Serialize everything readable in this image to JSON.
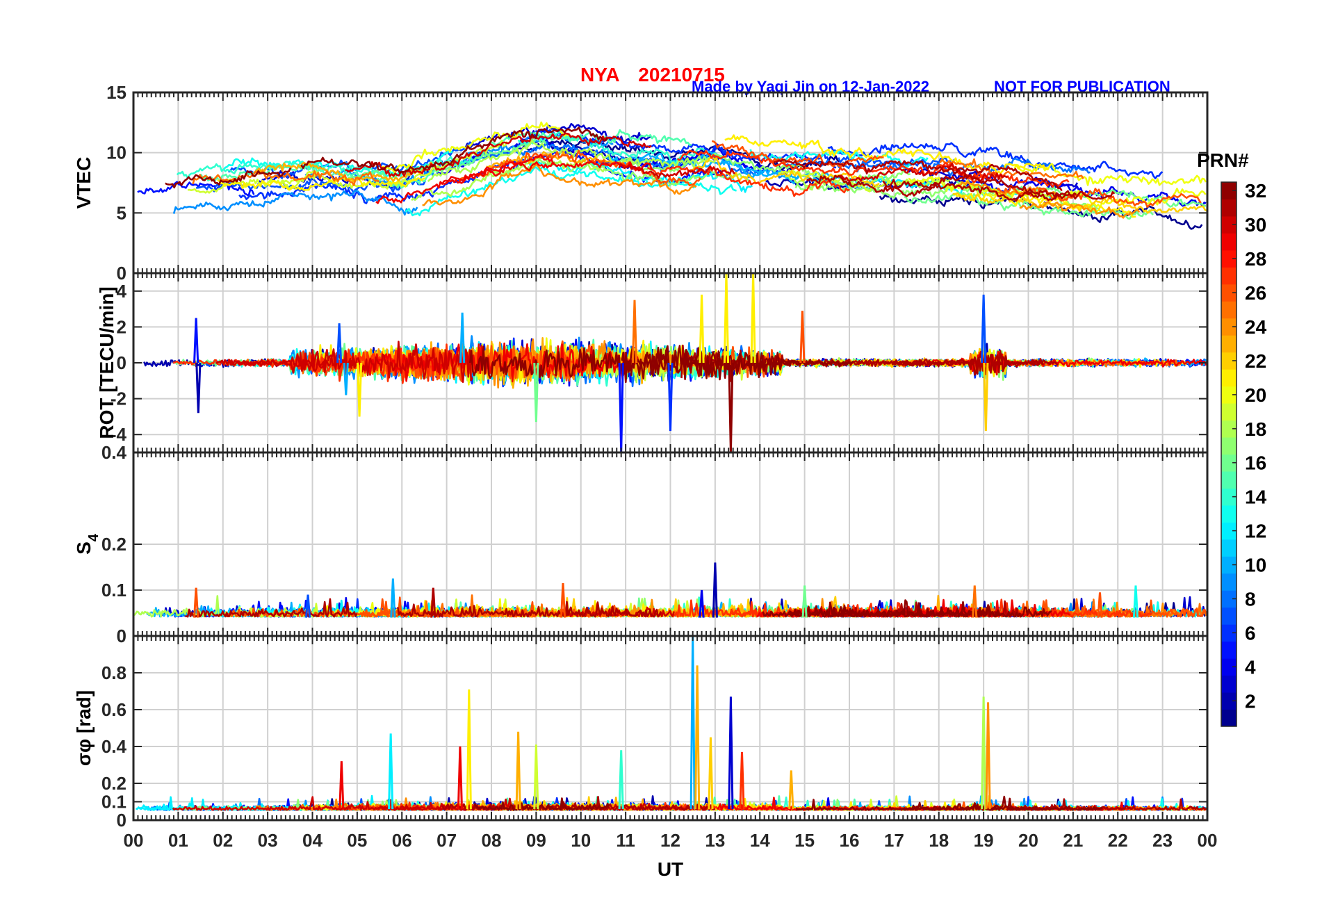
{
  "title": {
    "station": "NYA",
    "date": "20210715",
    "author_note": "Made by Yaqi Jin on 12-Jan-2022",
    "disclaimer": "NOT FOR PUBLICATION",
    "station_color": "#ff0000",
    "note_color": "#0000ff"
  },
  "chart_data": [
    {
      "type": "line",
      "panel": "vtec",
      "ylabel": "VTEC",
      "ylim": [
        0,
        15
      ],
      "yticks": [
        "0",
        "5",
        "10",
        "15"
      ],
      "yticks_values": [
        0,
        5,
        10,
        15
      ],
      "series_note": "one line per PRN 1-32, colored by PRN",
      "typical_range": [
        5,
        12.5
      ],
      "approx_profile_ut_hours": [
        0,
        2,
        4,
        6,
        8,
        9,
        10,
        12,
        13,
        14,
        16,
        18,
        20,
        22,
        24
      ],
      "approx_profile_values": [
        6.5,
        7.0,
        7.5,
        7.0,
        9.5,
        10.5,
        10.0,
        9.0,
        9.5,
        8.5,
        8.0,
        8.0,
        7.0,
        6.5,
        6.0
      ]
    },
    {
      "type": "line",
      "panel": "rot",
      "ylabel": "ROT [TECU/min]",
      "ylim": [
        -5,
        5
      ],
      "yticks": [
        "-4",
        "-2",
        "0",
        "2",
        "4"
      ],
      "yticks_values": [
        -4,
        -2,
        0,
        2,
        4
      ],
      "series_note": "rate of TEC, enhanced activity 04-14 UT and near 19 UT",
      "spikes": [
        {
          "ut": 1.4,
          "value": 2.5
        },
        {
          "ut": 1.45,
          "value": -2.8
        },
        {
          "ut": 4.6,
          "value": 2.2
        },
        {
          "ut": 4.75,
          "value": -1.8
        },
        {
          "ut": 5.05,
          "value": -3.0
        },
        {
          "ut": 7.35,
          "value": 2.8
        },
        {
          "ut": 9.0,
          "value": -3.3
        },
        {
          "ut": 10.9,
          "value": -5.1
        },
        {
          "ut": 11.2,
          "value": 3.5
        },
        {
          "ut": 12.0,
          "value": -3.8
        },
        {
          "ut": 12.7,
          "value": 3.8
        },
        {
          "ut": 13.25,
          "value": 5.5
        },
        {
          "ut": 13.35,
          "value": -5.5
        },
        {
          "ut": 13.85,
          "value": 5.5
        },
        {
          "ut": 14.95,
          "value": 2.9
        },
        {
          "ut": 19.0,
          "value": 3.8
        },
        {
          "ut": 19.05,
          "value": -3.8
        }
      ]
    },
    {
      "type": "line",
      "panel": "s4",
      "ylabel": "S4",
      "ylim": [
        0,
        0.4
      ],
      "yticks": [
        "0",
        "0.1",
        "0.2",
        "0.4"
      ],
      "yticks_values": [
        0,
        0.1,
        0.2,
        0.4
      ],
      "series_note": "amplitude scintillation index, baseline ~0.04",
      "spikes": [
        {
          "ut": 1.4,
          "value": 0.105
        },
        {
          "ut": 3.9,
          "value": 0.09
        },
        {
          "ut": 5.8,
          "value": 0.125
        },
        {
          "ut": 6.7,
          "value": 0.105
        },
        {
          "ut": 9.6,
          "value": 0.115
        },
        {
          "ut": 12.7,
          "value": 0.1
        },
        {
          "ut": 13.0,
          "value": 0.16
        },
        {
          "ut": 15.0,
          "value": 0.11
        },
        {
          "ut": 18.8,
          "value": 0.11
        },
        {
          "ut": 21.6,
          "value": 0.095
        },
        {
          "ut": 22.4,
          "value": 0.11
        }
      ]
    },
    {
      "type": "line",
      "panel": "sigma_phi",
      "ylabel": "σφ [rad]",
      "ylim": [
        0,
        1
      ],
      "yticks": [
        "0",
        "0.1",
        "0.2",
        "0.4",
        "0.6",
        "0.8"
      ],
      "yticks_values": [
        0,
        0.1,
        0.2,
        0.4,
        0.6,
        0.8
      ],
      "series_note": "phase scintillation index, baseline ~0.06",
      "spikes": [
        {
          "ut": 4.65,
          "value": 0.32
        },
        {
          "ut": 5.75,
          "value": 0.47
        },
        {
          "ut": 7.5,
          "value": 0.71
        },
        {
          "ut": 7.3,
          "value": 0.4
        },
        {
          "ut": 8.6,
          "value": 0.48
        },
        {
          "ut": 9.0,
          "value": 0.41
        },
        {
          "ut": 10.9,
          "value": 0.38
        },
        {
          "ut": 12.5,
          "value": 1.0
        },
        {
          "ut": 12.6,
          "value": 0.84
        },
        {
          "ut": 12.9,
          "value": 0.45
        },
        {
          "ut": 13.35,
          "value": 0.67
        },
        {
          "ut": 13.6,
          "value": 0.37
        },
        {
          "ut": 14.7,
          "value": 0.27
        },
        {
          "ut": 19.0,
          "value": 0.67
        },
        {
          "ut": 19.1,
          "value": 0.64
        }
      ]
    }
  ],
  "x_axis": {
    "label": "UT",
    "xlim": [
      0,
      24
    ],
    "ticks": [
      "00",
      "01",
      "02",
      "03",
      "04",
      "05",
      "06",
      "07",
      "08",
      "09",
      "10",
      "11",
      "12",
      "13",
      "14",
      "15",
      "16",
      "17",
      "18",
      "19",
      "20",
      "21",
      "22",
      "23",
      "00"
    ]
  },
  "colorbar": {
    "label": "PRN#",
    "range": [
      1,
      32
    ],
    "ticks": [
      "2",
      "4",
      "6",
      "8",
      "10",
      "12",
      "14",
      "16",
      "18",
      "20",
      "22",
      "24",
      "26",
      "28",
      "30",
      "32"
    ],
    "tick_values": [
      2,
      4,
      6,
      8,
      10,
      12,
      14,
      16,
      18,
      20,
      22,
      24,
      26,
      28,
      30,
      32
    ],
    "colormap": "jet"
  },
  "colors": {
    "axis": "#262626",
    "grid": "#d0d0d0",
    "background": "#ffffff"
  }
}
